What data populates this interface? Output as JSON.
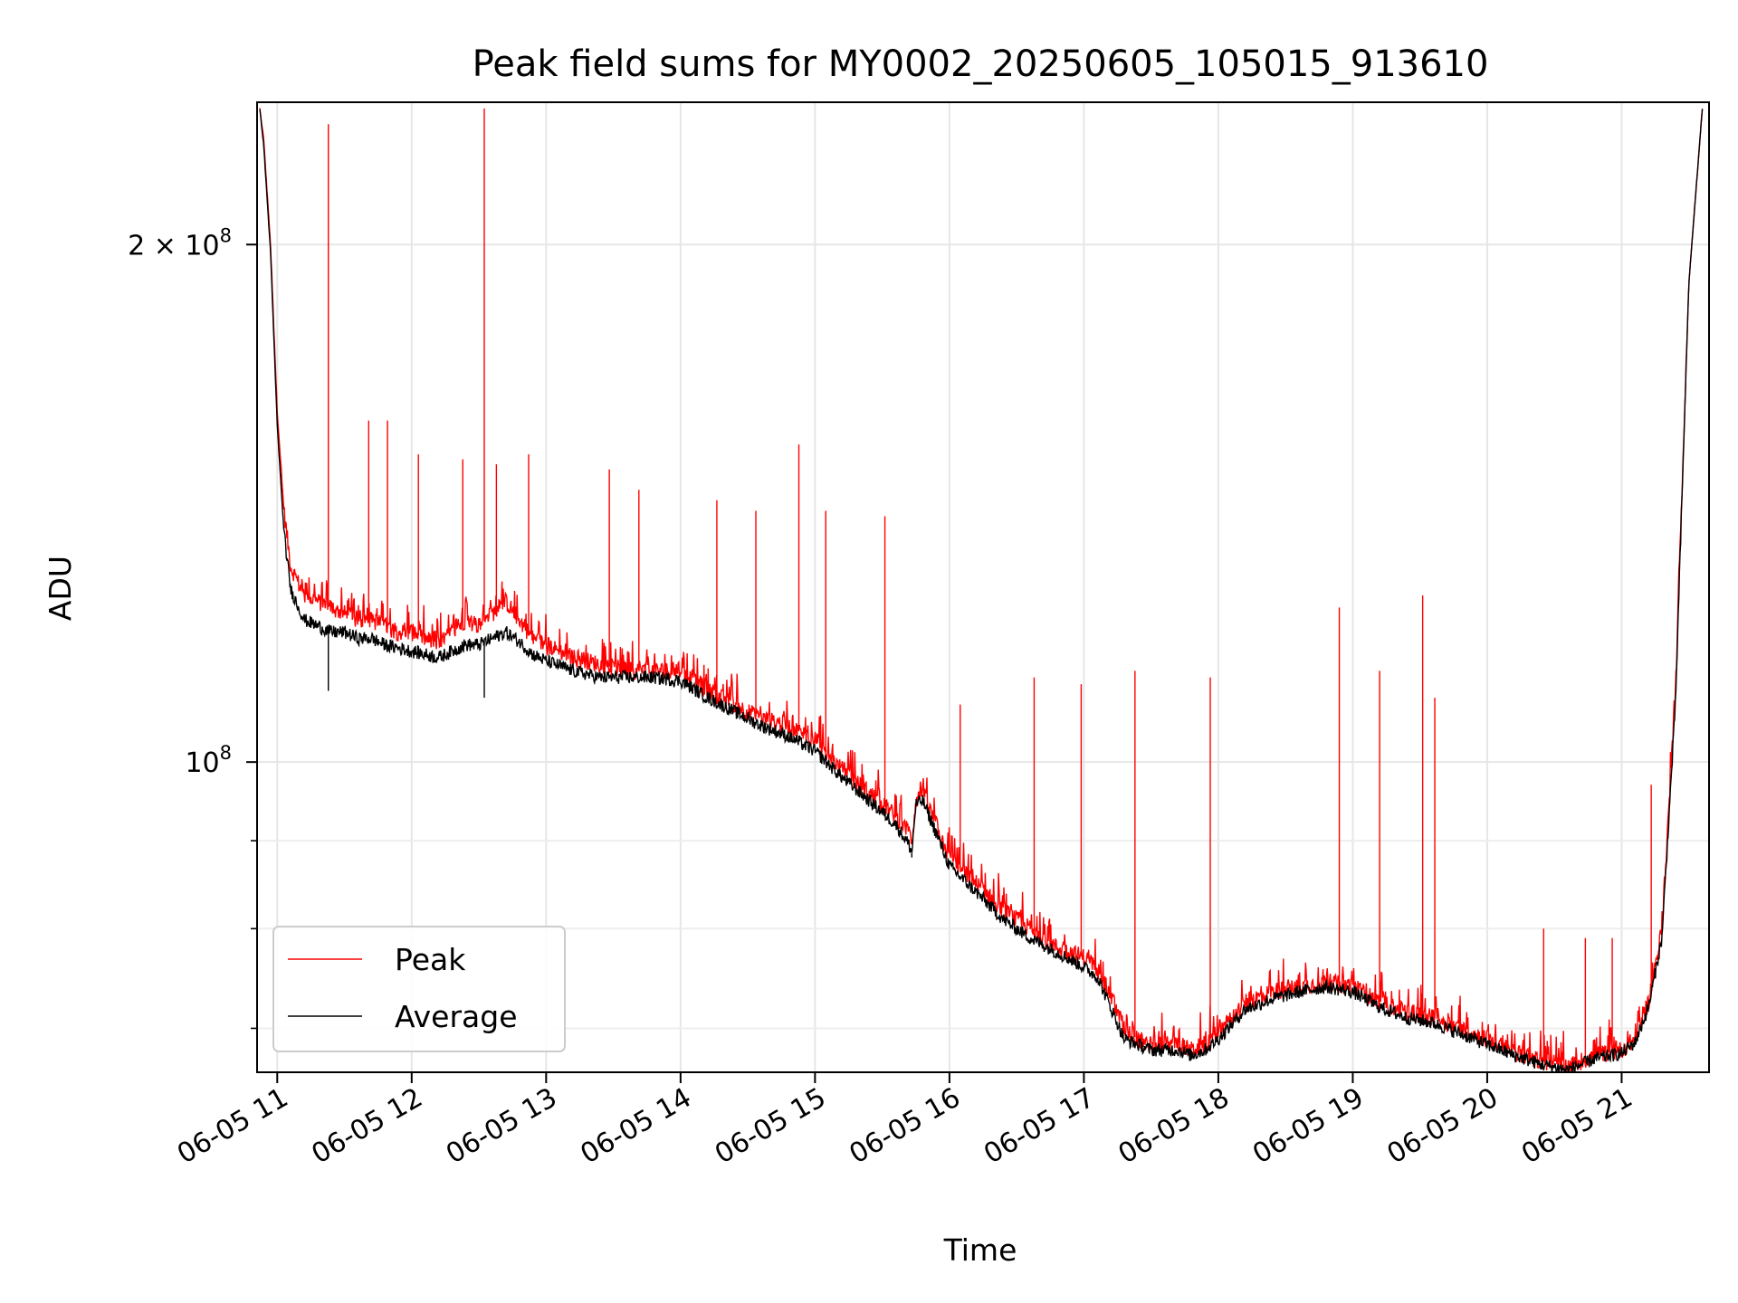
{
  "chart_data": {
    "type": "line",
    "title": "Peak field sums for MY0002_20250605_105015_913610",
    "xlabel": "Time",
    "ylabel": "ADU",
    "yscale": "log",
    "xlim": [
      10.85,
      21.65
    ],
    "ylim": [
      66000000,
      242000000
    ],
    "grid": true,
    "legend_position": "lower-left",
    "x_ticks": [
      {
        "value": 11,
        "label": "06-05 11"
      },
      {
        "value": 12,
        "label": "06-05 12"
      },
      {
        "value": 13,
        "label": "06-05 13"
      },
      {
        "value": 14,
        "label": "06-05 14"
      },
      {
        "value": 15,
        "label": "06-05 15"
      },
      {
        "value": 16,
        "label": "06-05 16"
      },
      {
        "value": 17,
        "label": "06-05 17"
      },
      {
        "value": 18,
        "label": "06-05 18"
      },
      {
        "value": 19,
        "label": "06-05 19"
      },
      {
        "value": 20,
        "label": "06-05 20"
      },
      {
        "value": 21,
        "label": "06-05 21"
      }
    ],
    "y_major_ticks": [
      {
        "value": 100000000,
        "label": "10",
        "exp": "8"
      },
      {
        "value": 200000000,
        "label": "2 × 10",
        "exp": "8"
      }
    ],
    "y_minor_ticks": [
      70000000,
      80000000,
      90000000
    ],
    "series": [
      {
        "name": "Peak",
        "color": "#ff0000",
        "x": [
          10.87,
          10.9,
          10.95,
          11.0,
          11.05,
          11.1,
          11.2,
          11.3,
          11.4,
          11.5,
          11.6,
          11.7,
          11.8,
          11.9,
          12.0,
          12.1,
          12.2,
          12.3,
          12.4,
          12.5,
          12.6,
          12.7,
          12.8,
          12.9,
          13.0,
          13.2,
          13.4,
          13.6,
          13.8,
          14.0,
          14.2,
          14.4,
          14.6,
          14.8,
          15.0,
          15.2,
          15.4,
          15.6,
          15.7,
          15.72,
          15.75,
          15.8,
          15.9,
          16.0,
          16.2,
          16.4,
          16.6,
          16.8,
          17.0,
          17.1,
          17.2,
          17.3,
          17.4,
          17.5,
          17.6,
          17.7,
          17.8,
          17.9,
          18.0,
          18.2,
          18.4,
          18.6,
          18.8,
          19.0,
          19.2,
          19.4,
          19.6,
          19.8,
          20.0,
          20.2,
          20.4,
          20.6,
          20.7,
          20.8,
          21.0,
          21.1,
          21.2,
          21.3,
          21.4,
          21.5,
          21.6
        ],
        "y": [
          240000000,
          230000000,
          200000000,
          160000000,
          140000000,
          130000000,
          125000000,
          124000000,
          123000000,
          122000000,
          121000000,
          121000000,
          120000000,
          119000000,
          119000000,
          118000000,
          117000000,
          119000000,
          121000000,
          120000000,
          122000000,
          124000000,
          121000000,
          118000000,
          117000000,
          115000000,
          114000000,
          113000000,
          113000000,
          113000000,
          110000000,
          108000000,
          106000000,
          105000000,
          103000000,
          99000000,
          96000000,
          93000000,
          91000000,
          90000000,
          95000000,
          96000000,
          92000000,
          88000000,
          85000000,
          82000000,
          80000000,
          78000000,
          77000000,
          76000000,
          73000000,
          70000000,
          69000000,
          68500000,
          68500000,
          68500000,
          68000000,
          68500000,
          69500000,
          72500000,
          73500000,
          74000000,
          74500000,
          74000000,
          72500000,
          71500000,
          71000000,
          70000000,
          69000000,
          67800000,
          67000000,
          66500000,
          67000000,
          67500000,
          68000000,
          69000000,
          72500000,
          80000000,
          110000000,
          190000000,
          240000000
        ],
        "spikes": [
          {
            "x": 11.38,
            "y": 235000000
          },
          {
            "x": 12.54,
            "y": 240000000
          },
          {
            "x": 11.68,
            "y": 158000000
          },
          {
            "x": 11.82,
            "y": 158000000
          },
          {
            "x": 12.05,
            "y": 151000000
          },
          {
            "x": 12.38,
            "y": 150000000
          },
          {
            "x": 12.63,
            "y": 149000000
          },
          {
            "x": 12.87,
            "y": 151000000
          },
          {
            "x": 13.47,
            "y": 148000000
          },
          {
            "x": 13.69,
            "y": 144000000
          },
          {
            "x": 14.27,
            "y": 142000000
          },
          {
            "x": 14.56,
            "y": 140000000
          },
          {
            "x": 14.88,
            "y": 153000000
          },
          {
            "x": 15.08,
            "y": 140000000
          },
          {
            "x": 15.52,
            "y": 139000000
          },
          {
            "x": 16.08,
            "y": 108000000
          },
          {
            "x": 16.63,
            "y": 112000000
          },
          {
            "x": 16.98,
            "y": 111000000
          },
          {
            "x": 17.38,
            "y": 113000000
          },
          {
            "x": 17.94,
            "y": 112000000
          },
          {
            "x": 18.9,
            "y": 123000000
          },
          {
            "x": 19.2,
            "y": 113000000
          },
          {
            "x": 19.52,
            "y": 125000000
          },
          {
            "x": 19.61,
            "y": 109000000
          },
          {
            "x": 20.42,
            "y": 80000000
          },
          {
            "x": 20.73,
            "y": 79000000
          },
          {
            "x": 20.93,
            "y": 79000000
          },
          {
            "x": 21.22,
            "y": 97000000
          }
        ]
      },
      {
        "name": "Average",
        "color": "#000000",
        "x": [
          10.87,
          10.9,
          10.95,
          11.0,
          11.05,
          11.1,
          11.2,
          11.3,
          11.4,
          11.5,
          11.6,
          11.7,
          11.8,
          11.9,
          12.0,
          12.1,
          12.2,
          12.3,
          12.4,
          12.5,
          12.6,
          12.7,
          12.8,
          12.9,
          13.0,
          13.2,
          13.4,
          13.6,
          13.8,
          14.0,
          14.2,
          14.4,
          14.6,
          14.8,
          15.0,
          15.2,
          15.4,
          15.6,
          15.7,
          15.72,
          15.75,
          15.8,
          15.9,
          16.0,
          16.2,
          16.4,
          16.6,
          16.8,
          17.0,
          17.1,
          17.2,
          17.3,
          17.4,
          17.5,
          17.6,
          17.7,
          17.8,
          17.9,
          18.0,
          18.2,
          18.4,
          18.6,
          18.8,
          19.0,
          19.2,
          19.4,
          19.6,
          19.8,
          20.0,
          20.2,
          20.4,
          20.6,
          20.7,
          20.8,
          21.0,
          21.1,
          21.2,
          21.3,
          21.4,
          21.5,
          21.6
        ],
        "y": [
          240000000,
          228000000,
          198000000,
          157000000,
          136000000,
          126000000,
          121000000,
          120000000,
          119000000,
          119000000,
          118000000,
          118000000,
          117000000,
          116500000,
          116000000,
          115500000,
          115000000,
          116000000,
          117000000,
          117000000,
          118000000,
          119000000,
          117500000,
          115500000,
          114500000,
          113000000,
          112000000,
          112000000,
          112000000,
          111500000,
          109000000,
          107000000,
          105000000,
          103500000,
          101500000,
          98000000,
          95000000,
          92000000,
          89500000,
          88500000,
          94500000,
          95000000,
          91000000,
          87000000,
          84000000,
          81000000,
          79000000,
          77500000,
          76000000,
          75000000,
          72000000,
          69000000,
          68500000,
          68000000,
          68000000,
          68000000,
          67500000,
          68000000,
          69000000,
          71800000,
          72800000,
          73500000,
          74000000,
          73500000,
          72000000,
          71000000,
          70500000,
          69500000,
          68500000,
          67500000,
          66700000,
          66200000,
          66700000,
          67200000,
          67700000,
          68700000,
          72000000,
          79000000,
          108000000,
          190000000,
          240000000
        ],
        "dips": [
          {
            "x": 11.38,
            "y": 110000000
          },
          {
            "x": 12.54,
            "y": 109000000
          },
          {
            "x": 15.72,
            "y": 88000000
          },
          {
            "x": 20.65,
            "y": 65800000
          }
        ]
      }
    ]
  }
}
